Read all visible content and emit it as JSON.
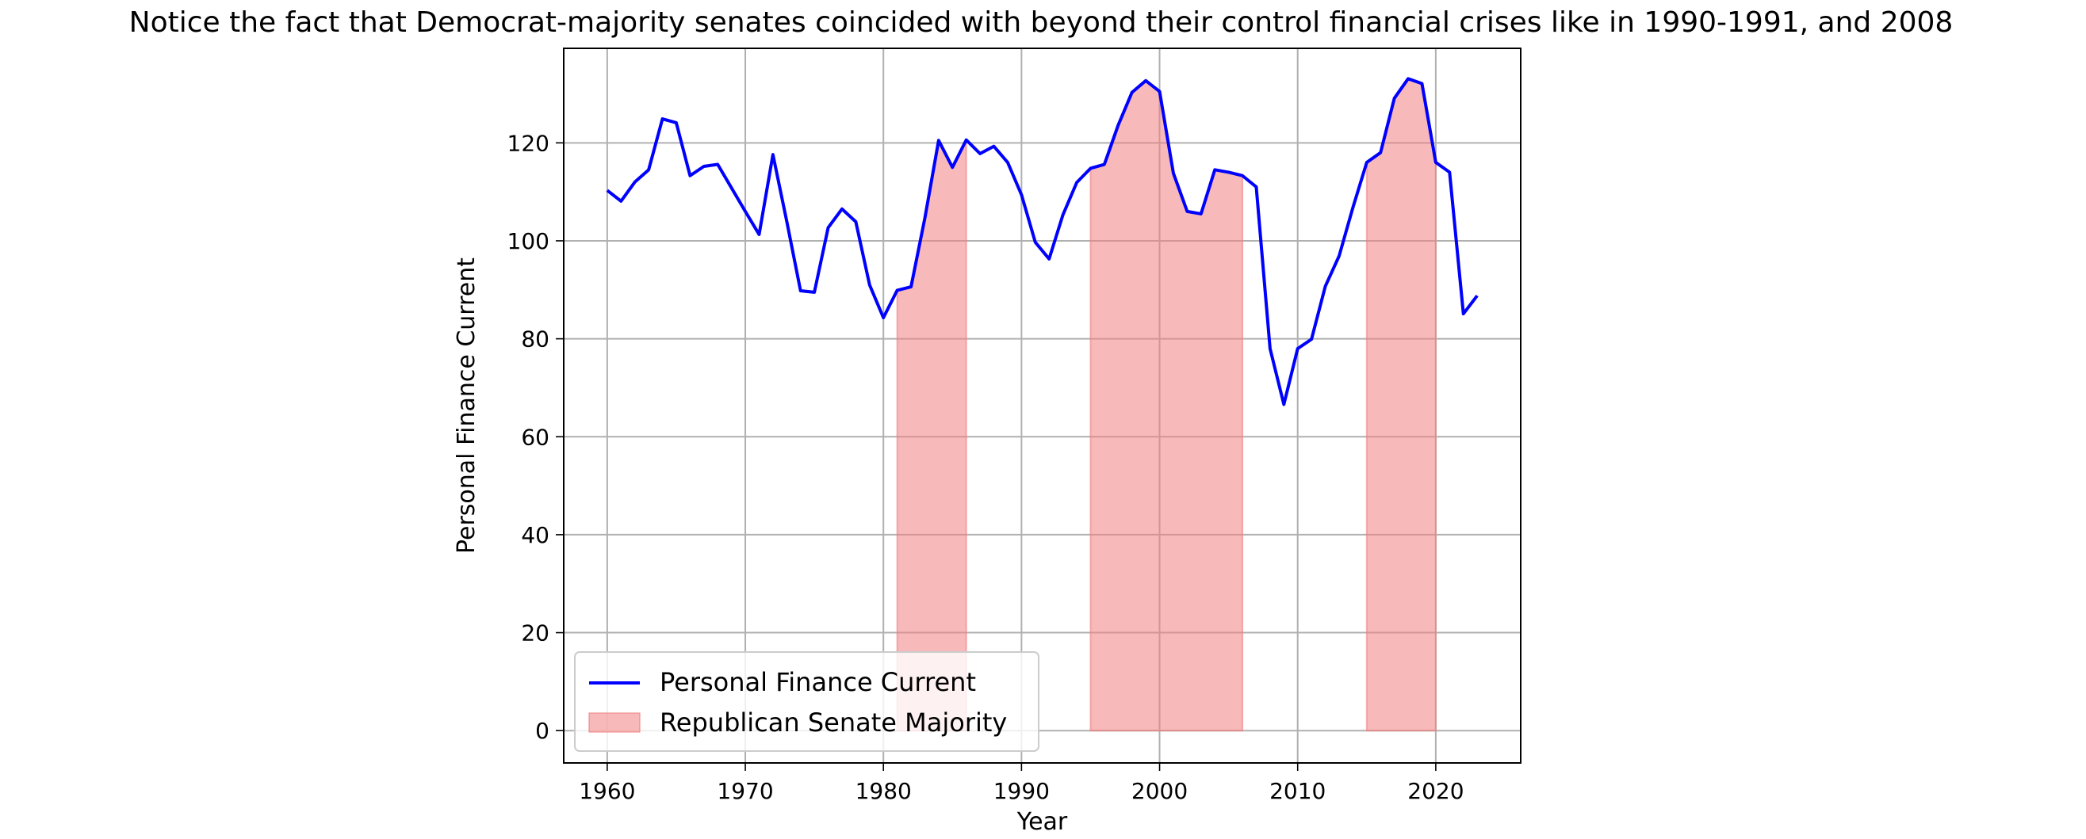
{
  "chart_data": {
    "type": "line",
    "title": "Notice the fact that Democrat-majority senates coincided with beyond their control financial crises like in 1990-1991, and 2008",
    "xlabel": "Year",
    "ylabel": "Personal Finance Current",
    "xlim": [
      1956.85,
      2026.15
    ],
    "ylim": [
      -6.6,
      139.3
    ],
    "xticks": [
      1960,
      1970,
      1980,
      1990,
      2000,
      2010,
      2020
    ],
    "yticks": [
      0,
      20,
      40,
      60,
      80,
      100,
      120
    ],
    "grid": true,
    "legend_position": "lower-left",
    "series": [
      {
        "name": "Personal Finance Current",
        "type": "line",
        "color": "#0000ff",
        "x": [
          1960,
          1961,
          1962,
          1963,
          1964,
          1965,
          1966,
          1967,
          1968,
          1969,
          1970,
          1971,
          1972,
          1973,
          1974,
          1975,
          1976,
          1977,
          1978,
          1979,
          1980,
          1981,
          1982,
          1983,
          1984,
          1985,
          1986,
          1987,
          1988,
          1989,
          1990,
          1991,
          1992,
          1993,
          1994,
          1995,
          1996,
          1997,
          1998,
          1999,
          2000,
          2001,
          2002,
          2003,
          2004,
          2005,
          2006,
          2007,
          2008,
          2009,
          2010,
          2011,
          2012,
          2013,
          2014,
          2015,
          2016,
          2017,
          2018,
          2019,
          2020,
          2021,
          2022,
          2023
        ],
        "y": [
          110.3,
          108.1,
          112.0,
          114.5,
          124.9,
          124.1,
          113.3,
          115.2,
          115.6,
          110.8,
          106.0,
          101.3,
          117.6,
          104.0,
          89.8,
          89.5,
          102.7,
          106.5,
          103.9,
          91.0,
          84.3,
          89.9,
          90.6,
          104.6,
          120.5,
          115.0,
          120.6,
          117.8,
          119.3,
          116.0,
          109.4,
          99.7,
          96.3,
          105.3,
          111.9,
          114.8,
          115.6,
          123.6,
          130.3,
          132.7,
          130.5,
          113.8,
          106.0,
          105.5,
          114.5,
          114.0,
          113.3,
          111.0,
          78.0,
          66.6,
          78.0,
          79.9,
          90.7,
          96.9,
          106.8,
          116.0,
          118.0,
          129.1,
          133.1,
          132.1,
          116.0,
          114.0,
          85.1,
          88.8
        ]
      },
      {
        "name": "Republican Senate Majority",
        "type": "area",
        "color": "#f08080",
        "periods": [
          [
            1981,
            1986
          ],
          [
            1995,
            2006
          ],
          [
            2015,
            2020
          ]
        ]
      }
    ]
  }
}
